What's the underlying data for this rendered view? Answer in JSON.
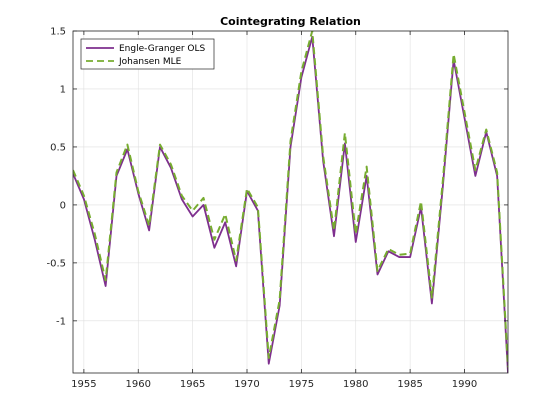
{
  "chart_data": {
    "type": "line",
    "title": "Cointegrating Relation",
    "xlabel": "",
    "ylabel": "",
    "xlim": [
      1954,
      1994
    ],
    "ylim": [
      -1.45,
      1.5
    ],
    "xticks": [
      1955,
      1960,
      1965,
      1970,
      1975,
      1980,
      1985,
      1990
    ],
    "xtick_labels": [
      "1955",
      "1960",
      "1965",
      "1970",
      "1975",
      "1980",
      "1985",
      "1990"
    ],
    "yticks": [
      1.5,
      1,
      0.5,
      0,
      -0.5,
      -1
    ],
    "ytick_labels": [
      "1.5",
      "1",
      "0.5",
      "0",
      "-0.5",
      "-1"
    ],
    "grid": true,
    "legend_position": "top-left",
    "x": [
      1954,
      1955,
      1956,
      1957,
      1958,
      1959,
      1960,
      1961,
      1962,
      1963,
      1964,
      1965,
      1966,
      1967,
      1968,
      1969,
      1970,
      1971,
      1972,
      1973,
      1974,
      1975,
      1976,
      1977,
      1978,
      1979,
      1980,
      1981,
      1982,
      1983,
      1984,
      1985,
      1986,
      1987,
      1988,
      1989,
      1990,
      1991,
      1992,
      1993,
      1994
    ],
    "series": [
      {
        "name": "Engle-Granger OLS",
        "color": "#7e2f8e",
        "dash": "solid",
        "values": [
          0.27,
          0.05,
          -0.3,
          -0.7,
          0.25,
          0.48,
          0.1,
          -0.22,
          0.5,
          0.32,
          0.05,
          -0.1,
          0.0,
          -0.37,
          -0.15,
          -0.53,
          0.12,
          -0.05,
          -1.37,
          -0.87,
          0.5,
          1.1,
          1.45,
          0.38,
          -0.27,
          0.53,
          -0.32,
          0.25,
          -0.6,
          -0.4,
          -0.45,
          -0.45,
          -0.02,
          -0.85,
          0.15,
          1.25,
          0.75,
          0.25,
          0.63,
          0.25,
          -1.45
        ]
      },
      {
        "name": "Johansen MLE",
        "color": "#77ac30",
        "dash": "dashed",
        "values": [
          0.3,
          0.08,
          -0.25,
          -0.65,
          0.28,
          0.52,
          0.12,
          -0.18,
          0.52,
          0.35,
          0.08,
          -0.05,
          0.06,
          -0.3,
          -0.08,
          -0.48,
          0.14,
          -0.02,
          -1.32,
          -0.82,
          0.55,
          1.15,
          1.5,
          0.42,
          -0.22,
          0.62,
          -0.25,
          0.33,
          -0.57,
          -0.38,
          -0.43,
          -0.42,
          0.03,
          -0.8,
          0.2,
          1.3,
          0.8,
          0.3,
          0.65,
          0.28,
          -1.4
        ]
      }
    ]
  }
}
